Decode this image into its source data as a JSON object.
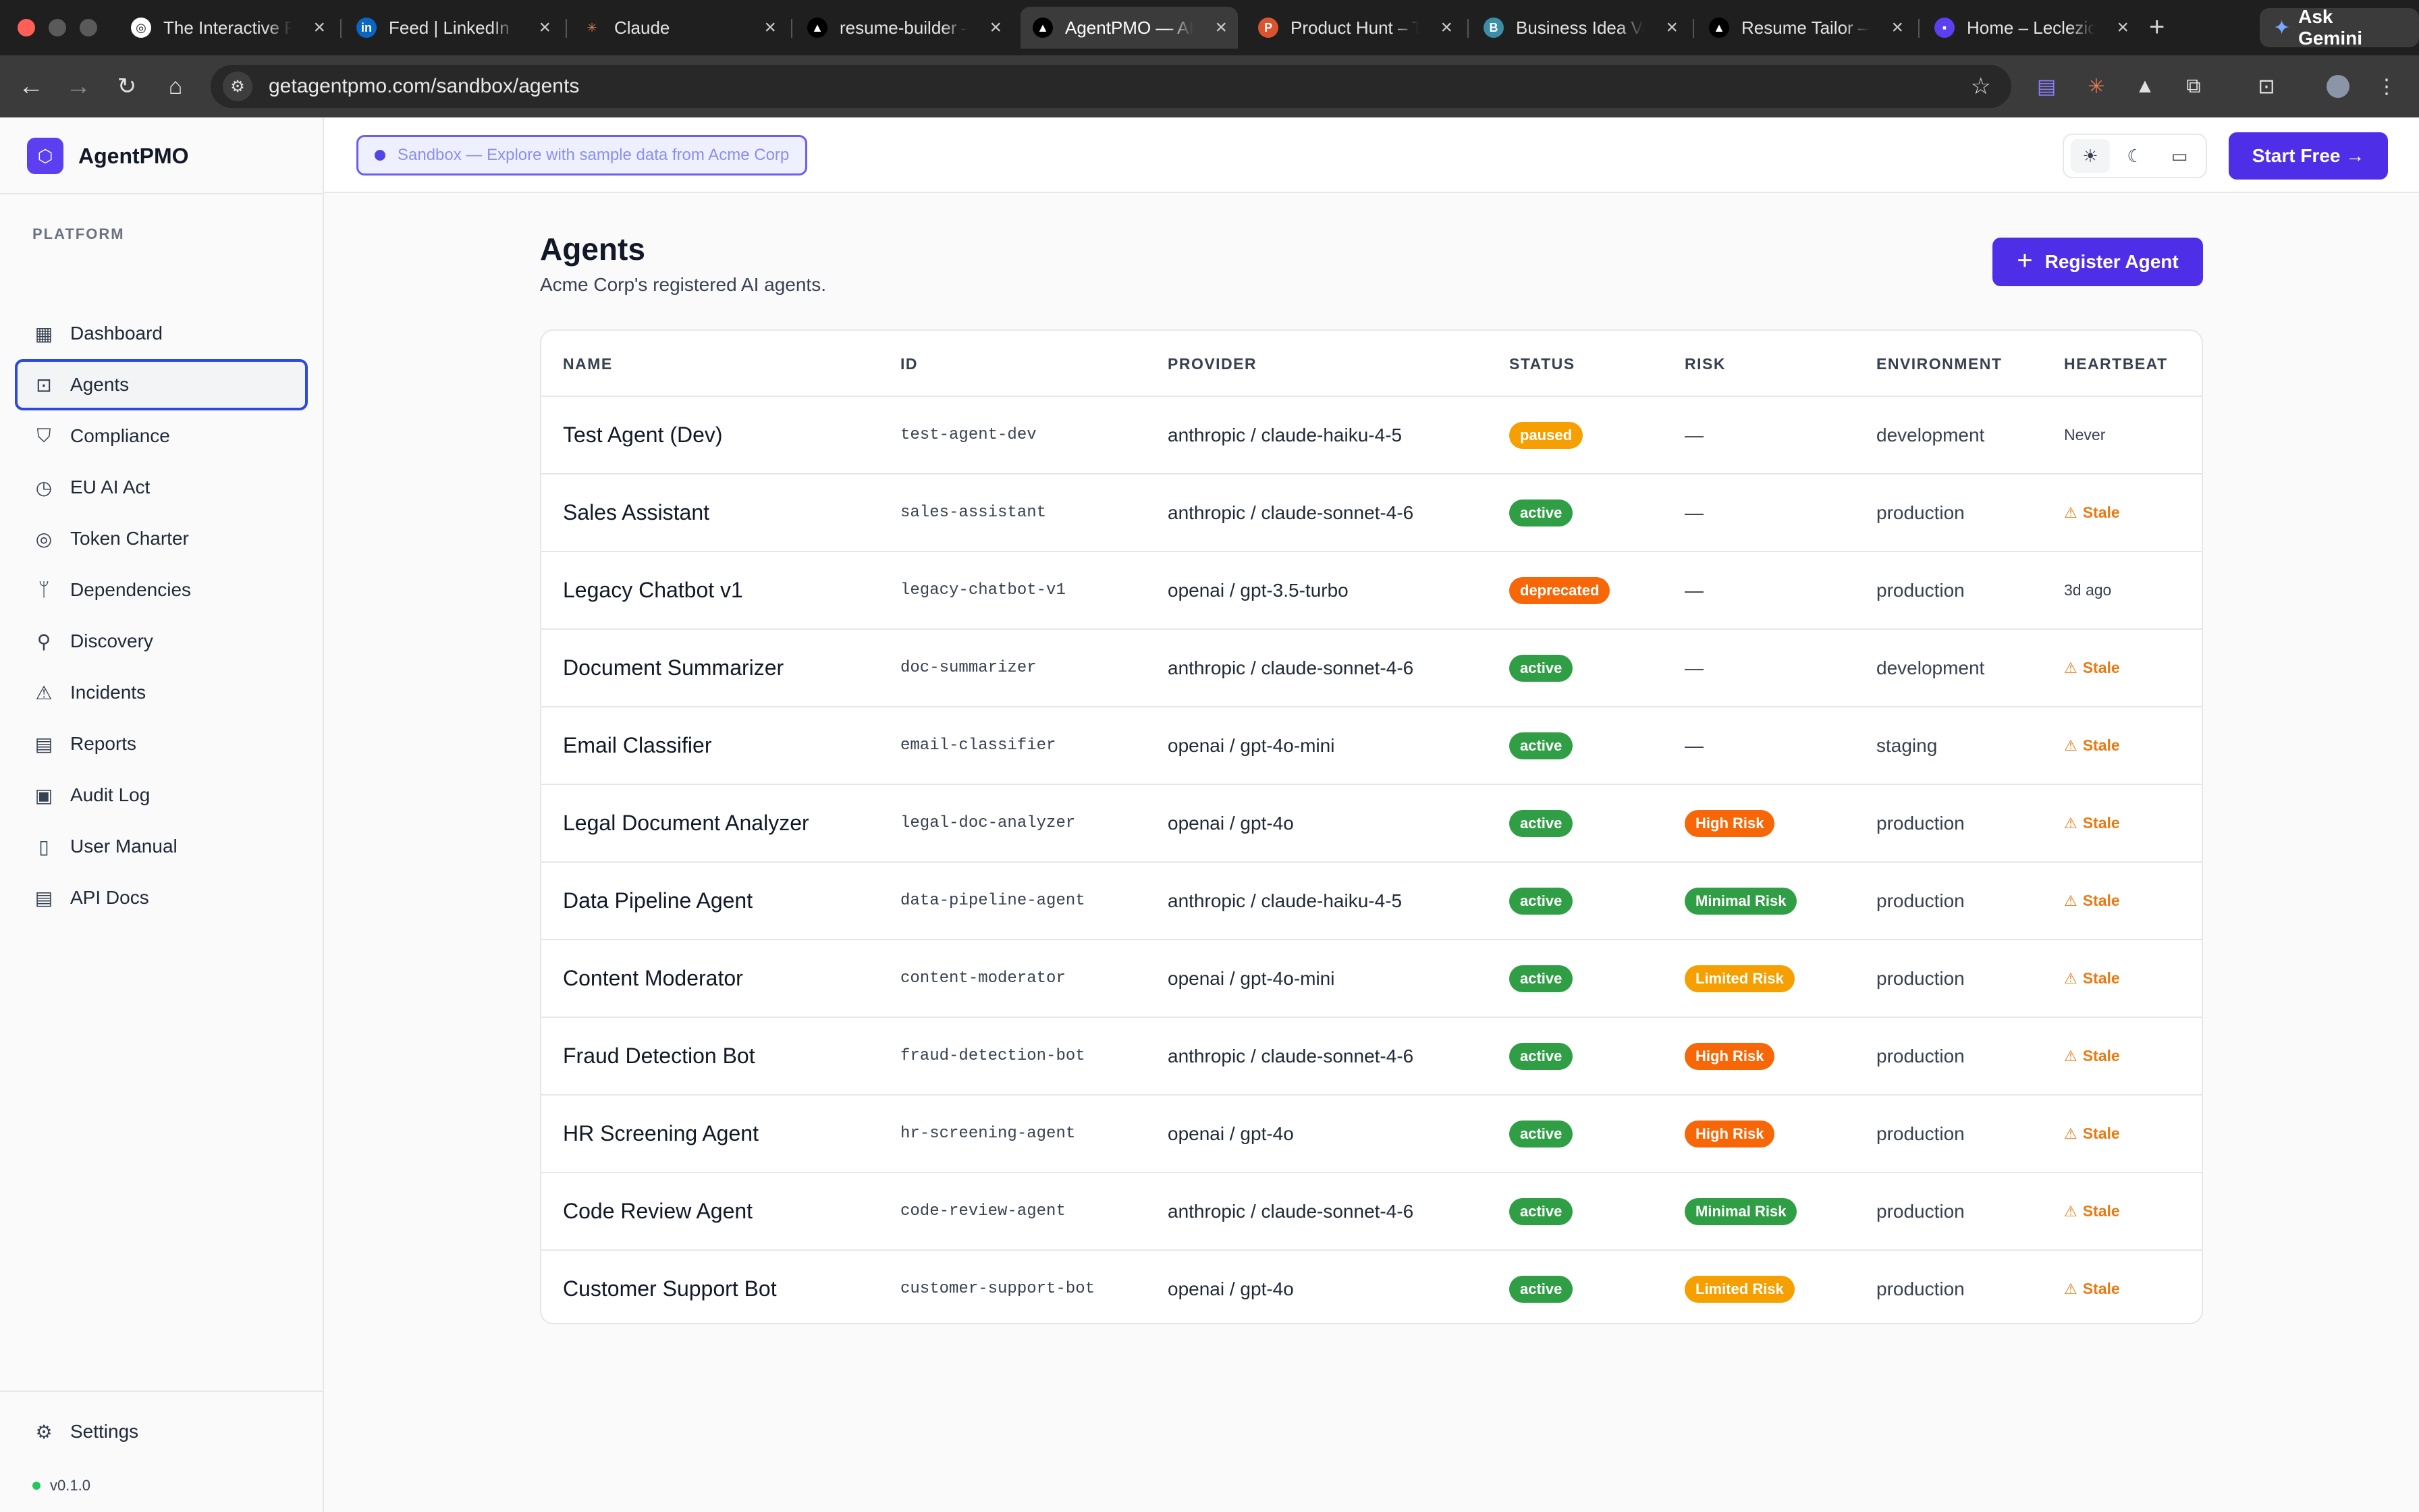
{
  "browser": {
    "tabs": [
      {
        "title": "The Interactive P",
        "favicon": "circle-logo-icon"
      },
      {
        "title": "Feed | LinkedIn",
        "favicon": "linkedin-icon"
      },
      {
        "title": "Claude",
        "favicon": "claude-icon"
      },
      {
        "title": "resume-builder –",
        "favicon": "triangle-icon"
      },
      {
        "title": "AgentPMO — AI",
        "favicon": "triangle-icon",
        "active": true
      },
      {
        "title": "Product Hunt – T",
        "favicon": "product-hunt-icon"
      },
      {
        "title": "Business Idea Va",
        "favicon": "b-icon"
      },
      {
        "title": "Resume Tailor —",
        "favicon": "triangle-icon"
      },
      {
        "title": "Home – Leclezio",
        "favicon": "chat-icon"
      }
    ],
    "ask_gemini": "Ask Gemini",
    "url": "getagentpmo.com/sandbox/agents"
  },
  "app": {
    "brand": "AgentPMO",
    "sandbox_banner": "Sandbox — Explore with sample data from Acme Corp",
    "start_free": "Start Free →",
    "accent_color": "#4f2ee8"
  },
  "sidebar": {
    "section_label": "PLATFORM",
    "items": [
      {
        "label": "Dashboard",
        "icon": "grid-icon"
      },
      {
        "label": "Agents",
        "icon": "bot-icon",
        "active": true
      },
      {
        "label": "Compliance",
        "icon": "shield-icon"
      },
      {
        "label": "EU AI Act",
        "icon": "timer-icon"
      },
      {
        "label": "Token Charter",
        "icon": "coins-icon"
      },
      {
        "label": "Dependencies",
        "icon": "git-branch-icon"
      },
      {
        "label": "Discovery",
        "icon": "search-icon"
      },
      {
        "label": "Incidents",
        "icon": "warning-icon"
      },
      {
        "label": "Reports",
        "icon": "file-icon"
      },
      {
        "label": "Audit Log",
        "icon": "clipboard-icon"
      },
      {
        "label": "User Manual",
        "icon": "book-icon"
      },
      {
        "label": "API Docs",
        "icon": "file-code-icon"
      }
    ],
    "settings": "Settings",
    "version": "v0.1.0"
  },
  "page": {
    "title": "Agents",
    "subtitle": "Acme Corp's registered AI agents.",
    "register_button": "Register Agent"
  },
  "table": {
    "columns": [
      "NAME",
      "ID",
      "PROVIDER",
      "STATUS",
      "RISK",
      "ENVIRONMENT",
      "HEARTBEAT"
    ],
    "rows": [
      {
        "name": "Test Agent (Dev)",
        "id": "test-agent-dev",
        "provider": "anthropic / claude-haiku-4-5",
        "status": "paused",
        "risk": "—",
        "environment": "development",
        "heartbeat": "Never",
        "stale": false
      },
      {
        "name": "Sales Assistant",
        "id": "sales-assistant",
        "provider": "anthropic / claude-sonnet-4-6",
        "status": "active",
        "risk": "—",
        "environment": "production",
        "heartbeat": "Stale",
        "stale": true
      },
      {
        "name": "Legacy Chatbot v1",
        "id": "legacy-chatbot-v1",
        "provider": "openai / gpt-3.5-turbo",
        "status": "deprecated",
        "risk": "—",
        "environment": "production",
        "heartbeat": "3d ago",
        "stale": false
      },
      {
        "name": "Document Summarizer",
        "id": "doc-summarizer",
        "provider": "anthropic / claude-sonnet-4-6",
        "status": "active",
        "risk": "—",
        "environment": "development",
        "heartbeat": "Stale",
        "stale": true
      },
      {
        "name": "Email Classifier",
        "id": "email-classifier",
        "provider": "openai / gpt-4o-mini",
        "status": "active",
        "risk": "—",
        "environment": "staging",
        "heartbeat": "Stale",
        "stale": true
      },
      {
        "name": "Legal Document Analyzer",
        "id": "legal-doc-analyzer",
        "provider": "openai / gpt-4o",
        "status": "active",
        "risk": "High Risk",
        "environment": "production",
        "heartbeat": "Stale",
        "stale": true
      },
      {
        "name": "Data Pipeline Agent",
        "id": "data-pipeline-agent",
        "provider": "anthropic / claude-haiku-4-5",
        "status": "active",
        "risk": "Minimal Risk",
        "environment": "production",
        "heartbeat": "Stale",
        "stale": true
      },
      {
        "name": "Content Moderator",
        "id": "content-moderator",
        "provider": "openai / gpt-4o-mini",
        "status": "active",
        "risk": "Limited Risk",
        "environment": "production",
        "heartbeat": "Stale",
        "stale": true
      },
      {
        "name": "Fraud Detection Bot",
        "id": "fraud-detection-bot",
        "provider": "anthropic / claude-sonnet-4-6",
        "status": "active",
        "risk": "High Risk",
        "environment": "production",
        "heartbeat": "Stale",
        "stale": true
      },
      {
        "name": "HR Screening Agent",
        "id": "hr-screening-agent",
        "provider": "openai / gpt-4o",
        "status": "active",
        "risk": "High Risk",
        "environment": "production",
        "heartbeat": "Stale",
        "stale": true
      },
      {
        "name": "Code Review Agent",
        "id": "code-review-agent",
        "provider": "anthropic / claude-sonnet-4-6",
        "status": "active",
        "risk": "Minimal Risk",
        "environment": "production",
        "heartbeat": "Stale",
        "stale": true
      },
      {
        "name": "Customer Support Bot",
        "id": "customer-support-bot",
        "provider": "openai / gpt-4o",
        "status": "active",
        "risk": "Limited Risk",
        "environment": "production",
        "heartbeat": "Stale",
        "stale": true
      }
    ]
  },
  "colors": {
    "status_active": "#2f9e44",
    "status_paused": "#f59f00",
    "status_deprecated": "#f76707",
    "risk_high": "#f76707",
    "risk_minimal": "#2f9e44",
    "risk_limited": "#f59f00",
    "stale": "#ea7a12"
  }
}
